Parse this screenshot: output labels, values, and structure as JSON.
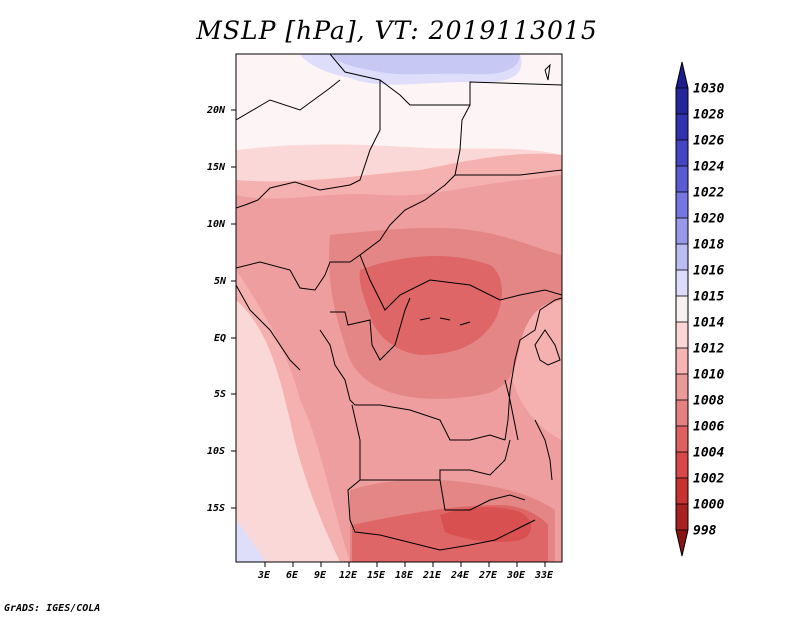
{
  "title": "MSLP [hPa], VT: 2019113015",
  "footer": "GrADS: IGES/COLA",
  "lat_labels": [
    "20N",
    "15N",
    "10N",
    "5N",
    "EQ",
    "5S",
    "10S",
    "15S"
  ],
  "lon_labels": [
    "3E",
    "6E",
    "9E",
    "12E",
    "15E",
    "18E",
    "21E",
    "24E",
    "27E",
    "30E",
    "33E"
  ],
  "colorbar": {
    "levels": [
      "1030",
      "1028",
      "1026",
      "1024",
      "1022",
      "1020",
      "1018",
      "1016",
      "1015",
      "1014",
      "1012",
      "1010",
      "1008",
      "1006",
      "1004",
      "1002",
      "1000",
      "998"
    ],
    "colors": [
      "#1c1c8c",
      "#25259c",
      "#3232b0",
      "#4545c4",
      "#5a5ad2",
      "#7676e0",
      "#9898ea",
      "#bcbcf4",
      "#dcdcfa",
      "#f6f0f0",
      "#fcd6d6",
      "#f6b4b4",
      "#eb9a9a",
      "#e58080",
      "#de6060",
      "#d84848",
      "#c83232",
      "#a82222",
      "#8a1414"
    ]
  },
  "field_colors": {
    "p1016": "#c8c8f5",
    "p1015": "#dedefa",
    "p1014": "#fdf5f5",
    "p1012": "#fbd8d8",
    "p1010": "#f5b0b0",
    "p1008": "#ee9e9e",
    "p1006": "#e48686",
    "p1004": "#de6666",
    "p1002": "#d85050"
  }
}
